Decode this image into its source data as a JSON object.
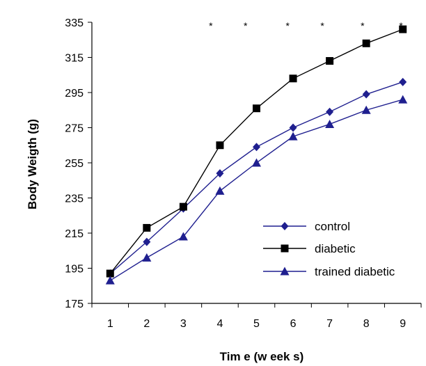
{
  "chart_data": {
    "type": "line",
    "title": "",
    "xlabel": "Tim e  (w eek s)",
    "ylabel": "Body Weigth (g)",
    "x": [
      1,
      2,
      3,
      4,
      5,
      6,
      7,
      8,
      9
    ],
    "ylim": [
      175,
      335
    ],
    "yticks": [
      175,
      195,
      215,
      235,
      255,
      275,
      295,
      315,
      335
    ],
    "grid": false,
    "legend_position": "bottom-right",
    "series": [
      {
        "name": "control",
        "marker": "diamond",
        "color": "#1f1f8f",
        "values": [
          192,
          210,
          229,
          249,
          264,
          275,
          284,
          294,
          301
        ]
      },
      {
        "name": "diabetic",
        "marker": "square",
        "color": "#000000",
        "values": [
          192,
          218,
          230,
          265,
          286,
          303,
          313,
          323,
          331
        ]
      },
      {
        "name": "trained diabetic",
        "marker": "triangle",
        "color": "#1f1f8f",
        "values": [
          188,
          201,
          213,
          239,
          255,
          270,
          277,
          285,
          291
        ]
      }
    ],
    "annotations": {
      "significance_marker": "*",
      "x_positions": [
        3.75,
        4.7,
        5.85,
        6.8,
        7.9,
        8.95
      ]
    }
  }
}
